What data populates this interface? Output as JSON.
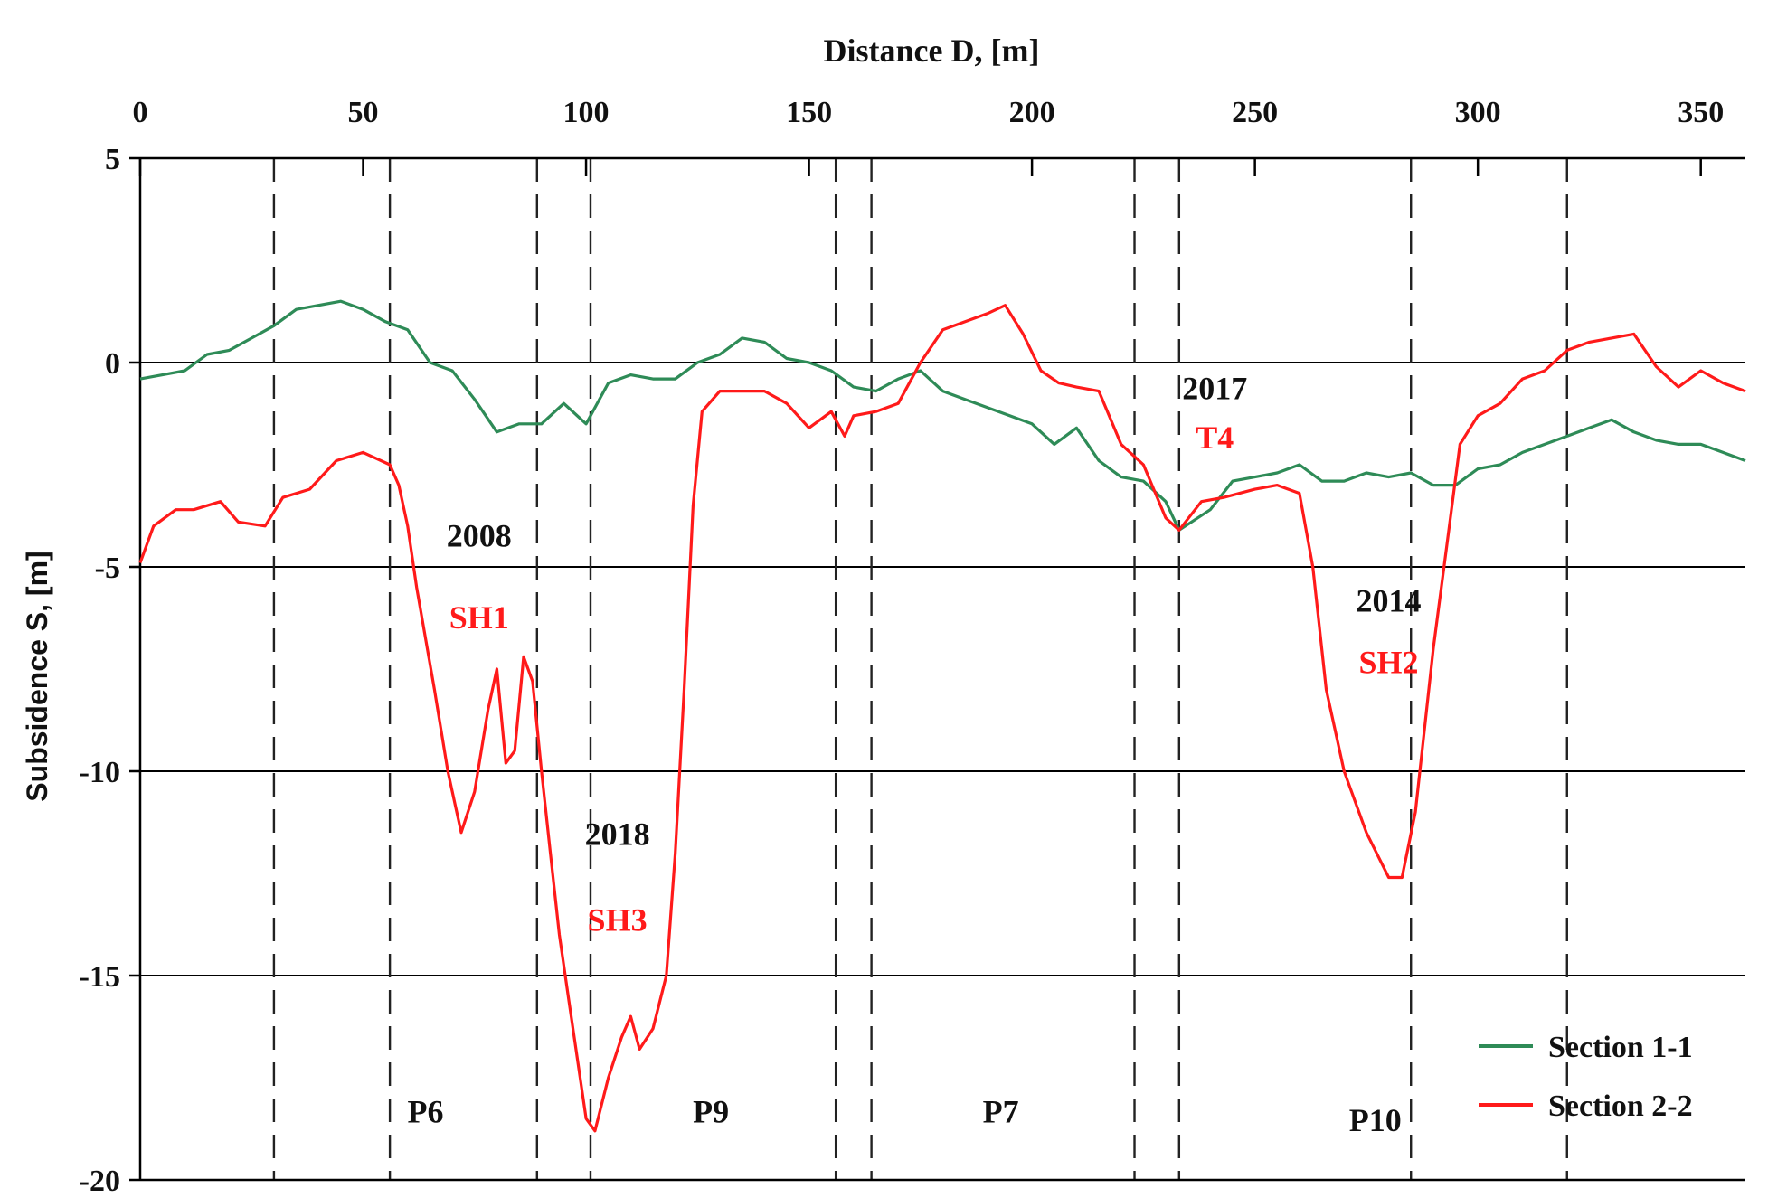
{
  "chart_data": {
    "type": "line",
    "title": "",
    "xlabel": "Distance D, [m]",
    "ylabel": "Subsidence S, [m]",
    "xlim": [
      0,
      360
    ],
    "ylim": [
      -20,
      5
    ],
    "x_ticks": [
      0,
      50,
      100,
      150,
      200,
      250,
      300,
      350
    ],
    "x_tick_labels": [
      "0",
      "50",
      "100",
      "150",
      "200",
      "250",
      "300",
      "350"
    ],
    "y_ticks": [
      5,
      0,
      -5,
      -10,
      -15,
      -20
    ],
    "y_tick_labels": [
      "5",
      "0",
      "-5",
      "-10",
      "-15",
      "-20"
    ],
    "y_gridlines": [
      0,
      -5,
      -10,
      -15
    ],
    "vertical_dashed_lines_x": [
      30,
      56,
      89,
      101,
      156,
      164,
      223,
      233,
      285,
      320
    ],
    "legend_position": "bottom-right",
    "series": [
      {
        "name": "Section 1-1",
        "color": "#2e8b57",
        "x": [
          0,
          5,
          10,
          15,
          20,
          25,
          30,
          35,
          40,
          45,
          50,
          55,
          60,
          65,
          70,
          75,
          80,
          85,
          90,
          95,
          100,
          105,
          110,
          115,
          120,
          125,
          130,
          135,
          140,
          145,
          150,
          155,
          160,
          165,
          170,
          175,
          180,
          185,
          190,
          195,
          200,
          205,
          210,
          215,
          220,
          225,
          230,
          233,
          240,
          245,
          250,
          255,
          260,
          265,
          270,
          275,
          280,
          285,
          290,
          295,
          300,
          305,
          310,
          315,
          320,
          325,
          330,
          335,
          340,
          345,
          350,
          355,
          360
        ],
        "values": [
          -0.4,
          -0.3,
          -0.2,
          0.2,
          0.3,
          0.6,
          0.9,
          1.3,
          1.4,
          1.5,
          1.3,
          1.0,
          0.8,
          0.0,
          -0.2,
          -0.9,
          -1.7,
          -1.5,
          -1.5,
          -1.0,
          -1.5,
          -0.5,
          -0.3,
          -0.4,
          -0.4,
          0.0,
          0.2,
          0.6,
          0.5,
          0.1,
          0.0,
          -0.2,
          -0.6,
          -0.7,
          -0.4,
          -0.2,
          -0.7,
          -0.9,
          -1.1,
          -1.3,
          -1.5,
          -2.0,
          -1.6,
          -2.4,
          -2.8,
          -2.9,
          -3.4,
          -4.1,
          -3.6,
          -2.9,
          -2.8,
          -2.7,
          -2.5,
          -2.9,
          -2.9,
          -2.7,
          -2.8,
          -2.7,
          -3.0,
          -3.0,
          -2.6,
          -2.5,
          -2.2,
          -2.0,
          -1.8,
          -1.6,
          -1.4,
          -1.7,
          -1.9,
          -2.0,
          -2.0,
          -2.2,
          -2.4
        ]
      },
      {
        "name": "Section 2-2",
        "color": "#ff1a1a",
        "x": [
          0,
          3,
          8,
          12,
          18,
          22,
          28,
          32,
          38,
          44,
          50,
          56,
          58,
          60,
          62,
          66,
          69,
          72,
          75,
          78,
          80,
          82,
          84,
          86,
          88,
          90,
          92,
          94,
          96,
          98,
          100,
          102,
          105,
          108,
          110,
          112,
          115,
          118,
          120,
          122,
          124,
          126,
          130,
          135,
          140,
          145,
          150,
          155,
          158,
          160,
          165,
          170,
          175,
          180,
          185,
          190,
          194,
          198,
          202,
          206,
          210,
          215,
          220,
          225,
          230,
          233,
          238,
          243,
          250,
          255,
          260,
          263,
          266,
          270,
          275,
          280,
          283,
          286,
          290,
          293,
          296,
          300,
          305,
          310,
          315,
          320,
          325,
          330,
          335,
          340,
          345,
          350,
          355,
          360
        ],
        "values": [
          -4.9,
          -4.0,
          -3.6,
          -3.6,
          -3.4,
          -3.9,
          -4.0,
          -3.3,
          -3.1,
          -2.4,
          -2.2,
          -2.5,
          -3.0,
          -4.0,
          -5.5,
          -8.0,
          -10.0,
          -11.5,
          -10.5,
          -8.5,
          -7.5,
          -9.8,
          -9.5,
          -7.2,
          -7.8,
          -10.0,
          -12.0,
          -14.0,
          -15.5,
          -17.0,
          -18.5,
          -18.8,
          -17.5,
          -16.5,
          -16.0,
          -16.8,
          -16.3,
          -15.0,
          -12.0,
          -8.0,
          -3.5,
          -1.2,
          -0.7,
          -0.7,
          -0.7,
          -1.0,
          -1.6,
          -1.2,
          -1.8,
          -1.3,
          -1.2,
          -1.0,
          0.0,
          0.8,
          1.0,
          1.2,
          1.4,
          0.7,
          -0.2,
          -0.5,
          -0.6,
          -0.7,
          -2.0,
          -2.5,
          -3.8,
          -4.1,
          -3.4,
          -3.3,
          -3.1,
          -3.0,
          -3.2,
          -5.0,
          -8.0,
          -10.0,
          -11.5,
          -12.6,
          -12.6,
          -11.0,
          -7.0,
          -4.5,
          -2.0,
          -1.3,
          -1.0,
          -0.4,
          -0.2,
          0.3,
          0.5,
          0.6,
          0.7,
          -0.1,
          -0.6,
          -0.2,
          -0.5,
          -0.7
        ]
      }
    ],
    "annotations": [
      {
        "year": "2008",
        "label": "SH1",
        "x": 76,
        "y_year": -4.5,
        "y_label": -6.5
      },
      {
        "year": "2018",
        "label": "SH3",
        "x": 107,
        "y_year": -11.8,
        "y_label": -13.9
      },
      {
        "year": "2017",
        "label": "T4",
        "x": 241,
        "y_year": -0.9,
        "y_label": -2.1
      },
      {
        "year": "2014",
        "label": "SH2",
        "x": 280,
        "y_year": -6.1,
        "y_label": -7.6
      }
    ],
    "region_labels": [
      {
        "label": "P6",
        "x": 64,
        "y": -18.6
      },
      {
        "label": "P9",
        "x": 128,
        "y": -18.6
      },
      {
        "label": "P7",
        "x": 193,
        "y": -18.6
      },
      {
        "label": "P10",
        "x": 277,
        "y": -18.8
      }
    ]
  }
}
